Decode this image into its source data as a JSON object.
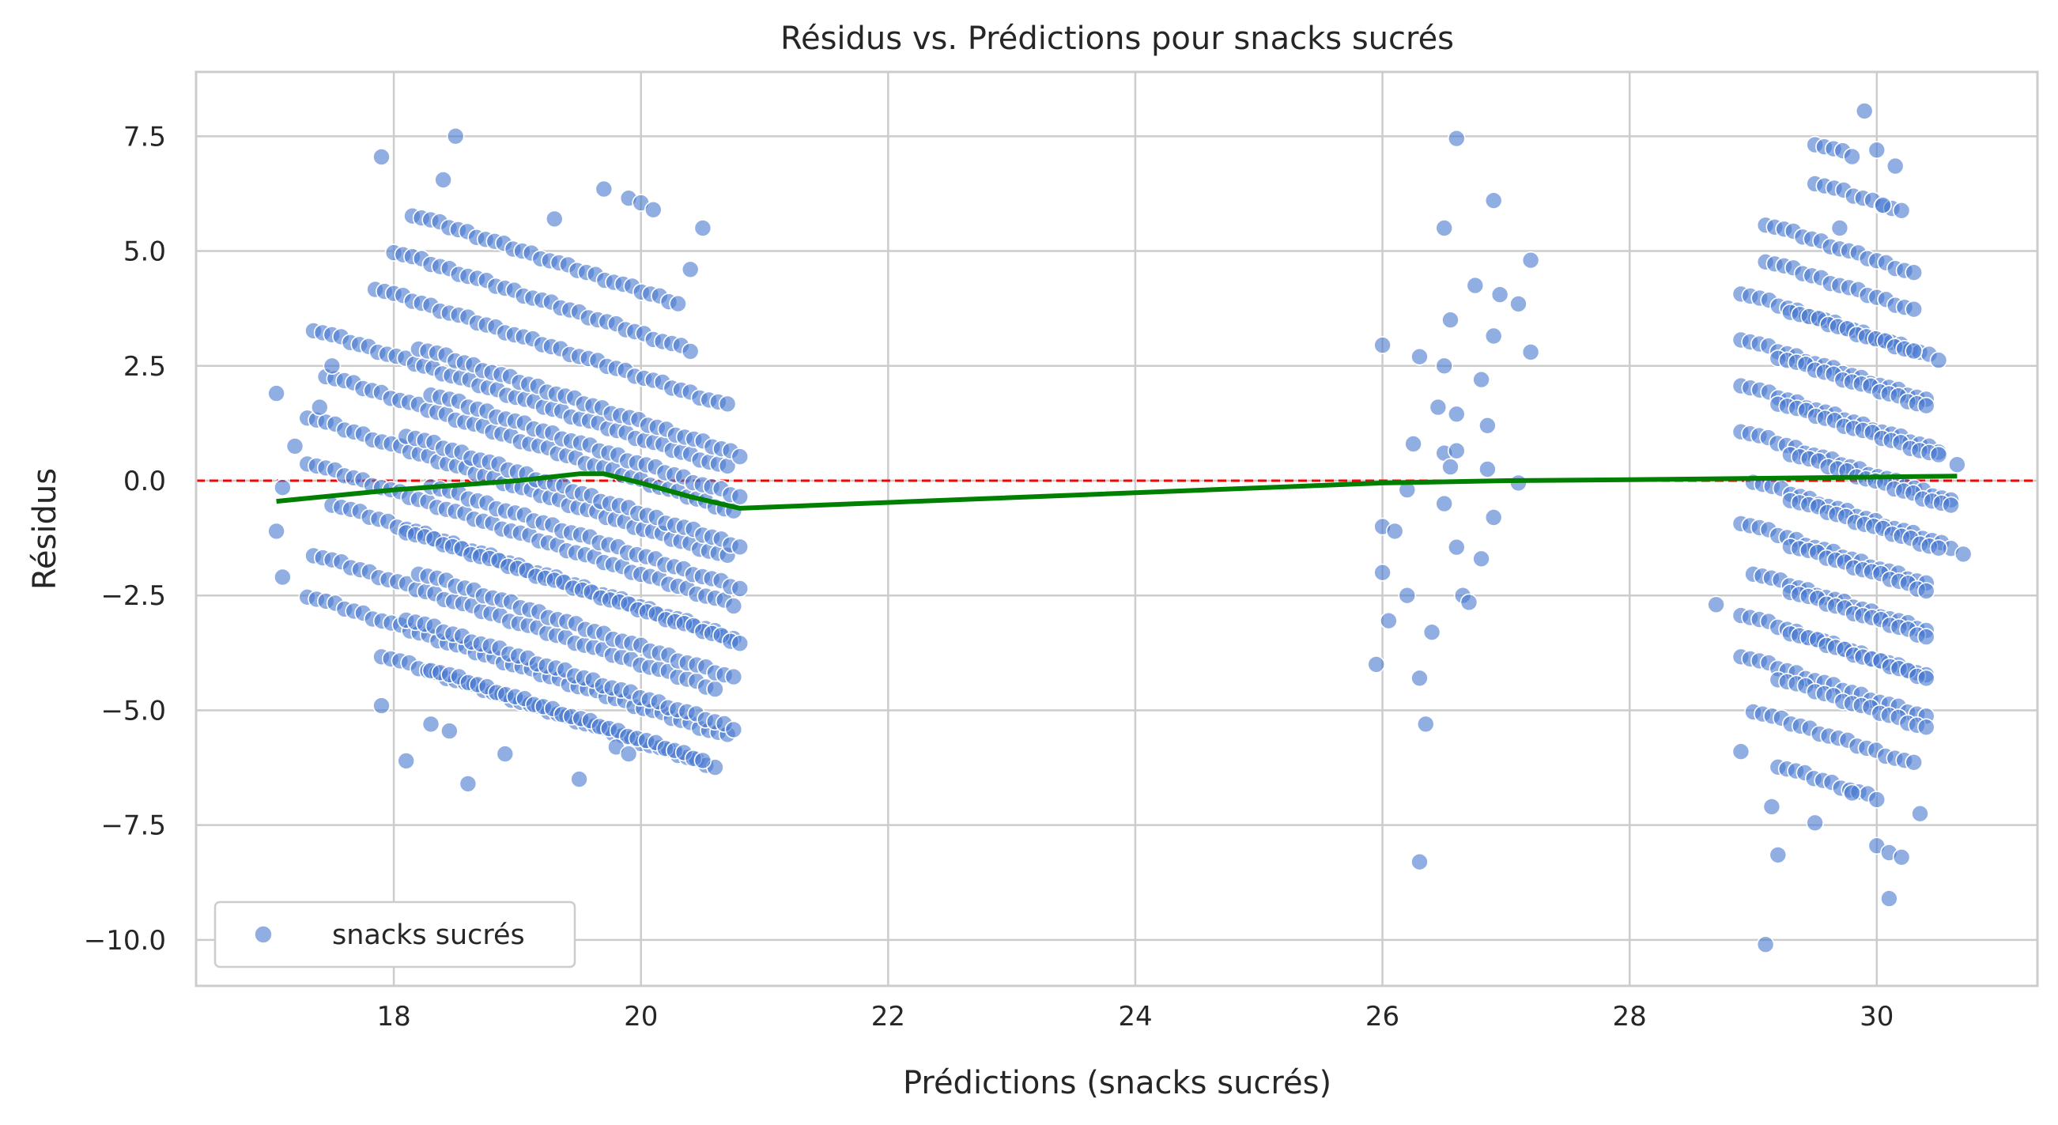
{
  "chart_data": {
    "type": "scatter",
    "title": "Résidus vs. Prédictions pour snacks sucrés",
    "xlabel": "Prédictions (snacks sucrés)",
    "ylabel": "Résidus",
    "xlim": [
      16.4,
      31.3
    ],
    "ylim": [
      -11.0,
      8.9
    ],
    "xticks": [
      18,
      20,
      22,
      24,
      26,
      28,
      30
    ],
    "xtick_labels": [
      "18",
      "20",
      "22",
      "24",
      "26",
      "28",
      "30"
    ],
    "yticks": [
      7.5,
      5.0,
      2.5,
      0.0,
      -2.5,
      -5.0,
      -7.5,
      -10.0
    ],
    "ytick_labels": [
      "7.5",
      "5.0",
      "2.5",
      "0.0",
      "−2.5",
      "−5.0",
      "−7.5",
      "−10.0"
    ],
    "grid": true,
    "legend": {
      "position": "lower-left",
      "entries": [
        {
          "name": "snacks sucrés",
          "marker": "circle"
        }
      ]
    },
    "reference_line": {
      "y": 0.0,
      "color": "#ff0000",
      "style": "dashed"
    },
    "series": [
      {
        "name": "snacks sucrés",
        "kind": "scatter",
        "color": "#4878d0",
        "alpha": 0.6,
        "cluster_bands": [
          {
            "x_start": 17.35,
            "y_start": 3.3,
            "slope": -0.9,
            "x_end": 20.7
          },
          {
            "x_start": 17.45,
            "y_start": 2.3,
            "slope": -0.9,
            "x_end": 20.75
          },
          {
            "x_start": 17.3,
            "y_start": 1.4,
            "slope": -0.9,
            "x_end": 20.7
          },
          {
            "x_start": 17.3,
            "y_start": 0.4,
            "slope": -0.9,
            "x_end": 20.75
          },
          {
            "x_start": 17.5,
            "y_start": -0.5,
            "slope": -0.9,
            "x_end": 20.75
          },
          {
            "x_start": 17.35,
            "y_start": -1.6,
            "slope": -0.9,
            "x_end": 20.6
          },
          {
            "x_start": 17.3,
            "y_start": -2.5,
            "slope": -0.9,
            "x_end": 20.7
          },
          {
            "x_start": 17.9,
            "y_start": -3.8,
            "slope": -0.9,
            "x_end": 20.6
          },
          {
            "x_start": 17.85,
            "y_start": 4.2,
            "slope": -0.9,
            "x_end": 20.7
          },
          {
            "x_start": 18.0,
            "y_start": 5.0,
            "slope": -0.9,
            "x_end": 20.4
          },
          {
            "x_start": 18.15,
            "y_start": 5.8,
            "slope": -0.9,
            "x_end": 20.3
          },
          {
            "x_start": 18.2,
            "y_start": 2.9,
            "slope": -0.9,
            "x_end": 20.8
          },
          {
            "x_start": 18.3,
            "y_start": 1.9,
            "slope": -0.9,
            "x_end": 20.8
          },
          {
            "x_start": 18.1,
            "y_start": 1.0,
            "slope": -0.9,
            "x_end": 20.8
          },
          {
            "x_start": 18.3,
            "y_start": -0.1,
            "slope": -0.9,
            "x_end": 20.8
          },
          {
            "x_start": 18.1,
            "y_start": -1.1,
            "slope": -0.9,
            "x_end": 20.8
          },
          {
            "x_start": 18.2,
            "y_start": -2.0,
            "slope": -0.9,
            "x_end": 20.75
          },
          {
            "x_start": 18.1,
            "y_start": -3.0,
            "slope": -0.9,
            "x_end": 20.75
          },
          {
            "x_start": 18.3,
            "y_start": -4.1,
            "slope": -0.9,
            "x_end": 20.5
          },
          {
            "x_start": 28.9,
            "y_start": 4.1,
            "slope": -0.9,
            "x_end": 30.5
          },
          {
            "x_start": 29.1,
            "y_start": 4.8,
            "slope": -0.9,
            "x_end": 30.3
          },
          {
            "x_start": 28.9,
            "y_start": 3.1,
            "slope": -0.9,
            "x_end": 30.4
          },
          {
            "x_start": 28.9,
            "y_start": 2.1,
            "slope": -0.9,
            "x_end": 30.5
          },
          {
            "x_start": 28.9,
            "y_start": 1.1,
            "slope": -0.9,
            "x_end": 30.6
          },
          {
            "x_start": 29.0,
            "y_start": 0.0,
            "slope": -0.9,
            "x_end": 30.6
          },
          {
            "x_start": 28.9,
            "y_start": -0.9,
            "slope": -0.9,
            "x_end": 30.4
          },
          {
            "x_start": 29.0,
            "y_start": -2.0,
            "slope": -0.9,
            "x_end": 30.4
          },
          {
            "x_start": 28.9,
            "y_start": -2.9,
            "slope": -0.9,
            "x_end": 30.4
          },
          {
            "x_start": 28.9,
            "y_start": -3.8,
            "slope": -0.9,
            "x_end": 30.4
          },
          {
            "x_start": 29.0,
            "y_start": -5.0,
            "slope": -0.9,
            "x_end": 30.3
          },
          {
            "x_start": 29.2,
            "y_start": -6.2,
            "slope": -0.9,
            "x_end": 30.0
          },
          {
            "x_start": 29.1,
            "y_start": 5.6,
            "slope": -0.9,
            "x_end": 30.3
          },
          {
            "x_start": 29.5,
            "y_start": 6.5,
            "slope": -0.9,
            "x_end": 30.2
          },
          {
            "x_start": 29.5,
            "y_start": 7.35,
            "slope": -0.9,
            "x_end": 29.8
          },
          {
            "x_start": 29.3,
            "y_start": 3.7,
            "slope": -0.9,
            "x_end": 30.3
          },
          {
            "x_start": 29.2,
            "y_start": 2.7,
            "slope": -0.9,
            "x_end": 30.4
          },
          {
            "x_start": 29.2,
            "y_start": 1.7,
            "slope": -0.9,
            "x_end": 30.5
          },
          {
            "x_start": 29.3,
            "y_start": 0.6,
            "slope": -0.9,
            "x_end": 30.6
          },
          {
            "x_start": 29.3,
            "y_start": -0.4,
            "slope": -0.9,
            "x_end": 30.5
          },
          {
            "x_start": 29.3,
            "y_start": -1.4,
            "slope": -0.9,
            "x_end": 30.4
          },
          {
            "x_start": 29.3,
            "y_start": -2.4,
            "slope": -0.9,
            "x_end": 30.4
          },
          {
            "x_start": 29.3,
            "y_start": -3.3,
            "slope": -0.9,
            "x_end": 30.4
          },
          {
            "x_start": 29.2,
            "y_start": -4.3,
            "slope": -0.9,
            "x_end": 30.4
          }
        ],
        "scattered_points": [
          [
            17.05,
            1.9
          ],
          [
            17.05,
            -1.1
          ],
          [
            17.1,
            -0.15
          ],
          [
            17.1,
            -2.1
          ],
          [
            17.2,
            0.75
          ],
          [
            17.4,
            1.6
          ],
          [
            17.5,
            2.5
          ],
          [
            17.9,
            7.05
          ],
          [
            17.9,
            -4.9
          ],
          [
            18.1,
            -6.1
          ],
          [
            18.4,
            6.55
          ],
          [
            18.5,
            7.5
          ],
          [
            18.3,
            -5.3
          ],
          [
            18.45,
            -5.45
          ],
          [
            18.6,
            -6.6
          ],
          [
            18.9,
            -5.95
          ],
          [
            19.3,
            5.7
          ],
          [
            19.5,
            -6.5
          ],
          [
            19.7,
            6.35
          ],
          [
            19.9,
            6.15
          ],
          [
            20.0,
            6.05
          ],
          [
            20.1,
            5.9
          ],
          [
            20.4,
            4.6
          ],
          [
            20.5,
            5.5
          ],
          [
            19.8,
            -5.8
          ],
          [
            19.9,
            -5.95
          ],
          [
            26.0,
            2.95
          ],
          [
            25.95,
            -4.0
          ],
          [
            26.0,
            -1.0
          ],
          [
            26.0,
            -2.0
          ],
          [
            26.05,
            -3.05
          ],
          [
            26.1,
            -1.1
          ],
          [
            26.2,
            -2.5
          ],
          [
            26.2,
            -0.2
          ],
          [
            26.25,
            0.8
          ],
          [
            26.3,
            -4.3
          ],
          [
            26.3,
            -8.3
          ],
          [
            26.35,
            -5.3
          ],
          [
            26.4,
            -3.3
          ],
          [
            26.45,
            1.6
          ],
          [
            26.5,
            0.6
          ],
          [
            26.5,
            -0.5
          ],
          [
            26.5,
            5.5
          ],
          [
            26.55,
            3.5
          ],
          [
            26.6,
            7.45
          ],
          [
            26.6,
            1.45
          ],
          [
            26.6,
            -1.45
          ],
          [
            26.65,
            -2.5
          ],
          [
            26.7,
            -2.65
          ],
          [
            26.75,
            4.25
          ],
          [
            26.8,
            -1.7
          ],
          [
            26.85,
            1.2
          ],
          [
            26.85,
            0.25
          ],
          [
            26.9,
            -0.8
          ],
          [
            26.9,
            6.1
          ],
          [
            26.95,
            4.05
          ],
          [
            27.1,
            3.85
          ],
          [
            27.2,
            4.8
          ],
          [
            27.2,
            2.8
          ],
          [
            27.1,
            -0.05
          ],
          [
            26.9,
            3.15
          ],
          [
            26.8,
            2.2
          ],
          [
            26.3,
            2.7
          ],
          [
            26.5,
            2.5
          ],
          [
            26.55,
            0.3
          ],
          [
            26.6,
            0.65
          ],
          [
            28.7,
            -2.7
          ],
          [
            28.9,
            -5.9
          ],
          [
            29.1,
            -10.1
          ],
          [
            29.15,
            -7.1
          ],
          [
            29.2,
            -8.15
          ],
          [
            29.5,
            -7.45
          ],
          [
            29.8,
            -6.8
          ],
          [
            30.0,
            -7.95
          ],
          [
            30.1,
            -8.1
          ],
          [
            30.2,
            -8.2
          ],
          [
            30.1,
            -9.1
          ],
          [
            30.35,
            -7.25
          ],
          [
            29.9,
            8.05
          ],
          [
            30.0,
            7.2
          ],
          [
            30.15,
            6.85
          ],
          [
            30.05,
            6.0
          ],
          [
            29.7,
            5.5
          ],
          [
            30.65,
            0.35
          ],
          [
            30.7,
            -1.6
          ]
        ]
      },
      {
        "name": "trend",
        "kind": "line",
        "color": "#008000",
        "points": [
          [
            17.05,
            -0.45
          ],
          [
            18.0,
            -0.2
          ],
          [
            19.0,
            0.0
          ],
          [
            19.5,
            0.15
          ],
          [
            19.7,
            0.15
          ],
          [
            20.0,
            -0.05
          ],
          [
            20.4,
            -0.35
          ],
          [
            20.8,
            -0.6
          ],
          [
            26.0,
            -0.05
          ],
          [
            27.0,
            0.0
          ],
          [
            28.0,
            0.02
          ],
          [
            29.0,
            0.05
          ],
          [
            30.0,
            0.08
          ],
          [
            30.65,
            0.1
          ]
        ]
      }
    ]
  }
}
